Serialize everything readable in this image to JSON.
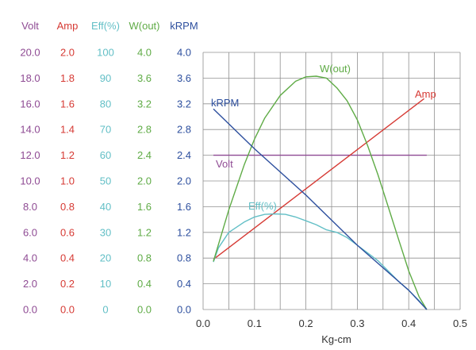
{
  "chart_data": {
    "type": "line",
    "xlabel": "Kg-cm",
    "xlim": [
      0,
      0.5
    ],
    "x_ticks": [
      "0.0",
      "0.1",
      "0.2",
      "0.3",
      "0.4",
      "0.5"
    ],
    "grid": true,
    "colors": {
      "volt": "#8e4a93",
      "amp": "#d63a34",
      "eff": "#62bfc6",
      "wout": "#5fab46",
      "krpm": "#2d4f9e",
      "grid": "#909090",
      "axis_text": "#333333"
    },
    "axes": [
      {
        "key": "volt",
        "header": "Volt",
        "range": [
          0,
          20
        ],
        "ticks": [
          "0.0",
          "2.0",
          "4.0",
          "6.0",
          "8.0",
          "10.0",
          "12.0",
          "14.0",
          "16.0",
          "18.0",
          "20.0"
        ]
      },
      {
        "key": "amp",
        "header": "Amp",
        "range": [
          0,
          2
        ],
        "ticks": [
          "0.0",
          "0.2",
          "0.4",
          "0.6",
          "0.8",
          "1.0",
          "1.2",
          "1.4",
          "1.6",
          "1.8",
          "2.0"
        ]
      },
      {
        "key": "eff",
        "header": "Eff(%)",
        "range": [
          0,
          100
        ],
        "ticks": [
          "0",
          "10",
          "20",
          "30",
          "40",
          "50",
          "60",
          "70",
          "80",
          "90",
          "100"
        ]
      },
      {
        "key": "wout",
        "header": "W(out)",
        "range": [
          0,
          4
        ],
        "ticks": [
          "0.0",
          "0.4",
          "0.8",
          "1.2",
          "1.6",
          "2.0",
          "2.4",
          "2.8",
          "3.2",
          "3.6",
          "4.0"
        ]
      },
      {
        "key": "krpm",
        "header": "kRPM",
        "range": [
          0,
          4
        ],
        "ticks": [
          "0.0",
          "0.4",
          "0.8",
          "1.2",
          "1.6",
          "2.0",
          "2.4",
          "2.8",
          "3.2",
          "3.6",
          "4.0"
        ]
      }
    ],
    "series": [
      {
        "key": "volt",
        "name": "Volt",
        "label": "Volt",
        "axis": "volt",
        "x": [
          0.02,
          0.435
        ],
        "y": [
          12.0,
          12.0
        ]
      },
      {
        "key": "amp",
        "name": "Amp",
        "label": "Amp",
        "axis": "amp",
        "x": [
          0.02,
          0.43
        ],
        "y": [
          0.39,
          1.64
        ]
      },
      {
        "key": "eff",
        "name": "Eff(%)",
        "label": "Eff(%)",
        "axis": "eff",
        "x": [
          0.02,
          0.03,
          0.05,
          0.08,
          0.1,
          0.12,
          0.14,
          0.16,
          0.18,
          0.2,
          0.22,
          0.24,
          0.26,
          0.28,
          0.3,
          0.32,
          0.34,
          0.36,
          0.38,
          0.4,
          0.42,
          0.435
        ],
        "y": [
          18.5,
          24,
          30,
          34,
          36,
          37,
          37.2,
          37,
          36,
          34.5,
          33,
          31,
          30,
          28,
          25,
          22,
          19,
          15,
          11,
          7.5,
          3.5,
          0
        ]
      },
      {
        "key": "wout",
        "name": "W(out)",
        "label": "W(out)",
        "axis": "wout",
        "x": [
          0.02,
          0.05,
          0.08,
          0.1,
          0.12,
          0.15,
          0.18,
          0.2,
          0.22,
          0.24,
          0.26,
          0.28,
          0.3,
          0.32,
          0.34,
          0.36,
          0.38,
          0.4,
          0.42,
          0.435
        ],
        "y": [
          0.75,
          1.55,
          2.25,
          2.65,
          2.98,
          3.33,
          3.55,
          3.62,
          3.63,
          3.6,
          3.45,
          3.25,
          2.95,
          2.55,
          2.1,
          1.6,
          1.1,
          0.6,
          0.2,
          0.0
        ]
      },
      {
        "key": "krpm",
        "name": "kRPM",
        "label": "kRPM",
        "axis": "krpm",
        "x": [
          0.02,
          0.1,
          0.2,
          0.3,
          0.4,
          0.435
        ],
        "y": [
          3.12,
          2.5,
          1.78,
          1.0,
          0.3,
          0.0
        ]
      }
    ]
  }
}
